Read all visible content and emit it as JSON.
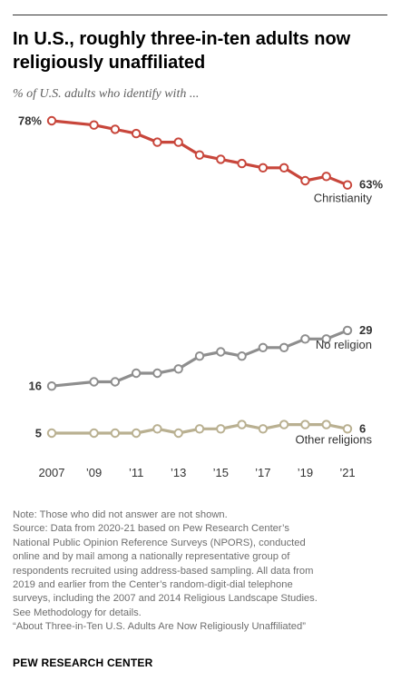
{
  "title": "In U.S., roughly three-in-ten adults now religiously unaffiliated",
  "subtitle": "% of U.S. adults who identify with ...",
  "note_lines": [
    "Note: Those who did not answer are not shown.",
    "Source: Data from 2020-21 based on Pew Research Center’s",
    "National Public Opinion Reference Surveys (NPORS), conducted",
    "online and by mail among a nationally representative group of",
    "respondents recruited using address-based sampling. All data from",
    "2019 and earlier from the Center’s random-digit-dial telephone",
    "surveys, including the 2007 and 2014 Religious Landscape Studies.",
    "See Methodology for details.",
    "“About Three-in-Ten U.S. Adults Are Now Religiously Unaffiliated”"
  ],
  "footer": "PEW RESEARCH CENTER",
  "chart_data": {
    "type": "line",
    "x": [
      2007,
      2009,
      2010,
      2011,
      2012,
      2013,
      2014,
      2015,
      2016,
      2017,
      2018,
      2019,
      2020,
      2021
    ],
    "x_tick_values": [
      2007,
      2009,
      2011,
      2013,
      2015,
      2017,
      2019,
      2021
    ],
    "x_tick_labels": [
      "2007",
      "’09",
      "’11",
      "’13",
      "’15",
      "’17",
      "’19",
      "’21"
    ],
    "ylim": [
      0,
      80
    ],
    "grid": false,
    "series": [
      {
        "name": "Christianity",
        "color": "#c8463b",
        "values": [
          78,
          77,
          76,
          75,
          73,
          73,
          70,
          69,
          68,
          67,
          67,
          64,
          65,
          63
        ],
        "start_label": "78%",
        "end_label": "63%"
      },
      {
        "name": "No religion",
        "color": "#8e8e8e",
        "values": [
          16,
          17,
          17,
          19,
          19,
          20,
          23,
          24,
          23,
          25,
          25,
          27,
          27,
          29
        ],
        "start_label": "16",
        "end_label": "29"
      },
      {
        "name": "Other religions",
        "color": "#b9b091",
        "values": [
          5,
          5,
          5,
          5,
          6,
          5,
          6,
          6,
          7,
          6,
          7,
          7,
          7,
          6
        ],
        "start_label": "5",
        "end_label": "6"
      }
    ]
  }
}
